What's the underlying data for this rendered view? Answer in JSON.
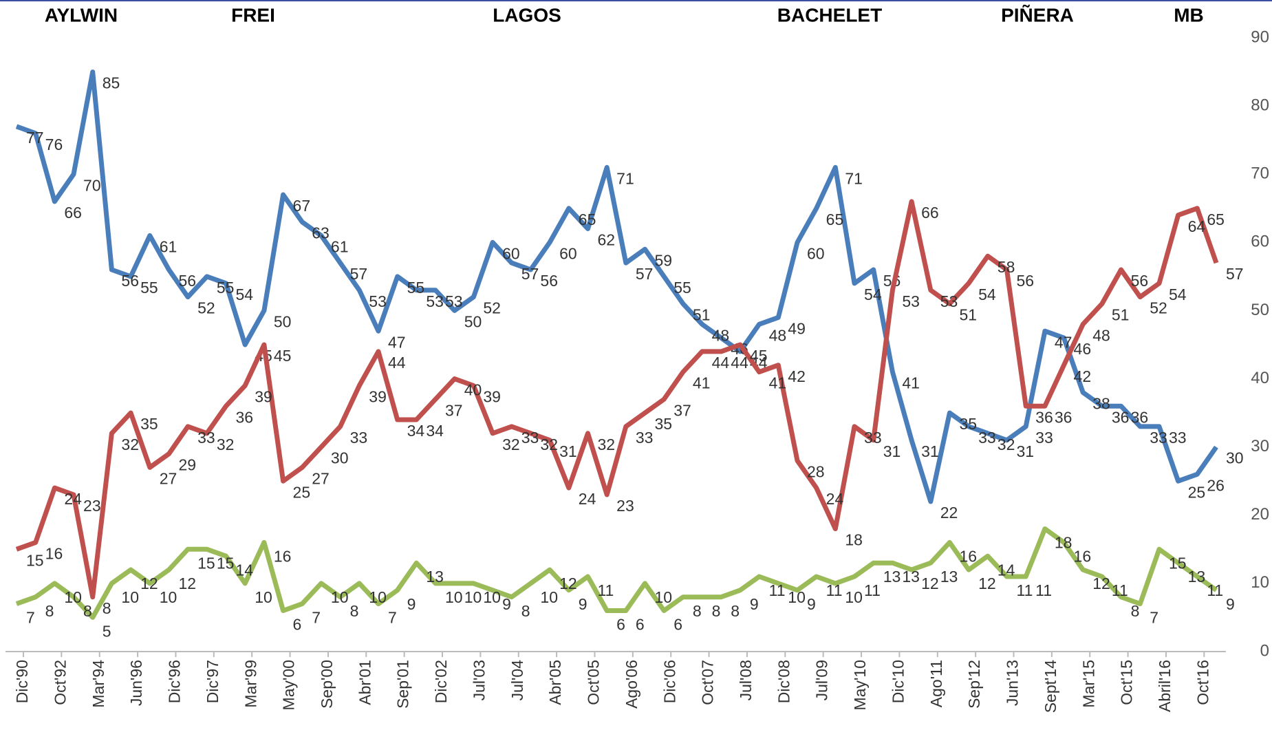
{
  "chart_data": {
    "type": "line",
    "periods": [
      "AYLWIN",
      "FREI",
      "LAGOS",
      "BACHELET",
      "PIÑERA",
      "MB"
    ],
    "categories": [
      "Dic'90",
      null,
      "Oct'92",
      null,
      "Mar'94",
      null,
      "Jun'96",
      null,
      "Dic'96",
      null,
      "Dic'97",
      null,
      "Mar'99",
      null,
      "May'00",
      null,
      "Sep'00",
      null,
      "Abr'01",
      null,
      "Sep'01",
      null,
      "Dic'02",
      null,
      "Jul'03",
      null,
      "Jul'04",
      null,
      "Abr'05",
      null,
      "Oct'05",
      null,
      "Ago'06",
      null,
      "Dic'06",
      null,
      "Oct'07",
      null,
      "Jul'08",
      null,
      "Dic'08",
      null,
      "Jul'09",
      null,
      "May'10",
      null,
      "Dic'10",
      null,
      "Ago'11",
      null,
      "Sep'12",
      null,
      "Jun'13",
      null,
      "Sept'14",
      null,
      "Mar'15",
      null,
      "Oct'15",
      null,
      "Abril'16",
      null,
      "Oct'16",
      null
    ],
    "series": [
      {
        "color": "#4a7ebb",
        "values": [
          77,
          76,
          66,
          70,
          85,
          56,
          55,
          61,
          56,
          52,
          55,
          54,
          45,
          50,
          67,
          63,
          61,
          57,
          53,
          47,
          55,
          53,
          53,
          50,
          52,
          60,
          57,
          56,
          60,
          65,
          62,
          71,
          57,
          59,
          55,
          51,
          48,
          46,
          44,
          48,
          49,
          60,
          65,
          71,
          54,
          56,
          41,
          31,
          22,
          35,
          33,
          32,
          31,
          33,
          47,
          46,
          38,
          36,
          36,
          33,
          33,
          25,
          26,
          30
        ]
      },
      {
        "color": "#c0504d",
        "values": [
          15,
          16,
          24,
          23,
          8,
          32,
          35,
          27,
          29,
          33,
          32,
          36,
          39,
          45,
          25,
          27,
          30,
          33,
          39,
          44,
          34,
          34,
          37,
          40,
          39,
          32,
          33,
          32,
          31,
          24,
          32,
          23,
          33,
          35,
          37,
          41,
          44,
          44,
          45,
          41,
          42,
          28,
          24,
          18,
          33,
          31,
          53,
          66,
          53,
          51,
          54,
          58,
          56,
          36,
          36,
          42,
          48,
          51,
          56,
          52,
          54,
          64,
          65,
          57
        ]
      },
      {
        "color": "#9bbb59",
        "values": [
          7,
          8,
          10,
          8,
          5,
          10,
          12,
          10,
          12,
          15,
          15,
          14,
          10,
          16,
          6,
          7,
          10,
          8,
          10,
          7,
          9,
          13,
          10,
          10,
          10,
          9,
          8,
          10,
          12,
          9,
          11,
          6,
          6,
          10,
          6,
          8,
          8,
          8,
          9,
          11,
          10,
          9,
          11,
          10,
          11,
          13,
          13,
          12,
          13,
          16,
          12,
          14,
          11,
          11,
          18,
          16,
          12,
          11,
          8,
          7,
          15,
          13,
          11,
          9
        ]
      }
    ],
    "ylim": [
      0,
      90
    ],
    "yticks": [
      0,
      10,
      20,
      30,
      40,
      50,
      60,
      70,
      80,
      90
    ]
  }
}
